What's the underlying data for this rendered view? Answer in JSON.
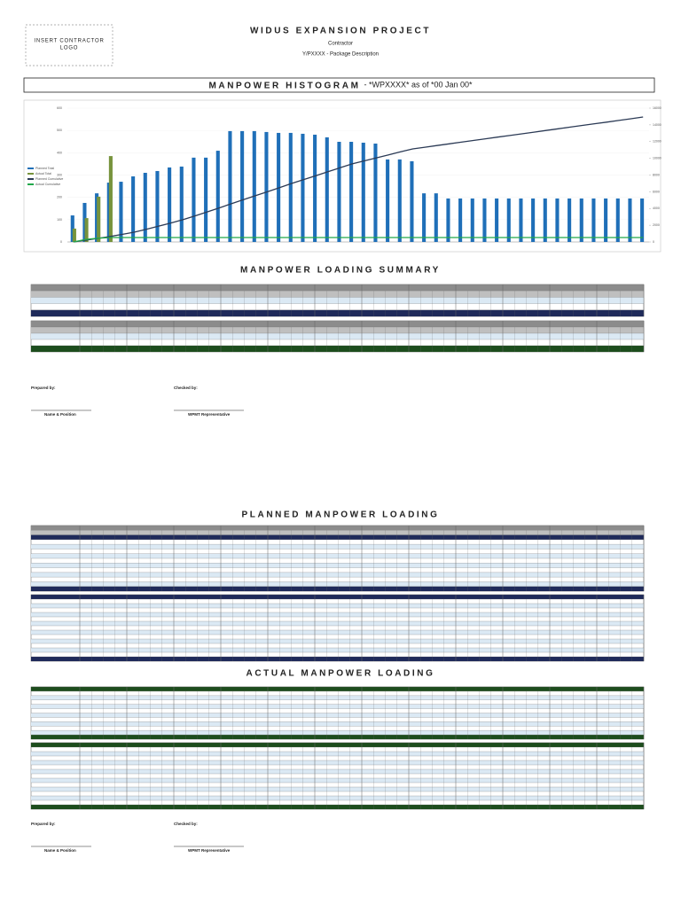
{
  "header": {
    "logo_line1": "INSERT CONTRACTOR",
    "logo_line2": "LOGO",
    "title": "WIDUS EXPANSION PROJECT",
    "contractor": "Contractor",
    "package": "Y/PXXXX - Package Description"
  },
  "sections": {
    "summary": "MANPOWER LOADING SUMMARY",
    "planned": "PLANNED MANPOWER LOADING",
    "actual": "ACTUAL MANPOWER LOADING"
  },
  "signatures": {
    "prepared_by": "Prepared by:",
    "checked_by": "Checked by:",
    "name_position": "Name & Position",
    "wpmt": "WPMT Representative"
  },
  "chart_data": {
    "type": "bar",
    "title": "MANPOWER HISTOGRAM",
    "subtitle": "- *WPXXXX* as of *00 Jan 00*",
    "ylim": [
      0,
      600
    ],
    "yticks": [
      0,
      100,
      200,
      300,
      400,
      500,
      600
    ],
    "y2lim": [
      0,
      16000
    ],
    "y2ticks": [
      0,
      2000,
      4000,
      6000,
      8000,
      10000,
      12000,
      14000,
      16000
    ],
    "series": [
      {
        "name": "Planned Total",
        "color": "#1f6fb8",
        "type": "bar",
        "values": [
          119,
          175,
          218,
          266,
          270,
          294,
          310,
          318,
          334,
          338,
          378,
          378,
          409,
          497,
          497,
          497,
          493,
          489,
          489,
          485,
          481,
          469,
          449,
          449,
          445,
          441,
          370,
          370,
          362,
          218,
          218,
          195,
          195,
          195,
          195,
          195,
          195,
          195,
          195,
          195,
          195,
          195,
          195,
          195,
          195,
          195,
          195,
          195
        ]
      },
      {
        "name": "Actual Total",
        "color": "#77933c",
        "type": "bar",
        "values": [
          60,
          107,
          203,
          385,
          null,
          null,
          null,
          null,
          null,
          null,
          null,
          null,
          null,
          null,
          null,
          null,
          null,
          null,
          null,
          null,
          null,
          null,
          null,
          null,
          null,
          null,
          null,
          null,
          null,
          null,
          null,
          null,
          null,
          null,
          null,
          null,
          null,
          null,
          null,
          null,
          null,
          null,
          null,
          null,
          null,
          null,
          null,
          null
        ]
      },
      {
        "name": "Planned Cumulative",
        "color": "#2b3a55",
        "type": "line",
        "axis": "y2",
        "values": [
          0,
          200,
          420,
          650,
          900,
          1165,
          1520,
          1880,
          2250,
          2650,
          3100,
          3580,
          4060,
          4560,
          5040,
          5520,
          6000,
          6490,
          6990,
          7460,
          7930,
          8400,
          8870,
          9330,
          9700,
          10060,
          10420,
          10780,
          11130,
          11330,
          11530,
          11730,
          11930,
          12130,
          12330,
          12530,
          12730,
          12930,
          13130,
          13330,
          13530,
          13730,
          13930,
          14130,
          14330,
          14530,
          14730,
          14940
        ]
      },
      {
        "name": "Actual Cumulative",
        "color": "#21a84a",
        "type": "line",
        "axis": "y2",
        "values": [
          0,
          300,
          450,
          530,
          530,
          530,
          530,
          530,
          530,
          530,
          530,
          530,
          530,
          530,
          530,
          530,
          530,
          530,
          530,
          530,
          530,
          530,
          530,
          530,
          530,
          530,
          530,
          530,
          530,
          530,
          530,
          530,
          530,
          530,
          530,
          530,
          530,
          530,
          530,
          530,
          530,
          530,
          530,
          530,
          530,
          530,
          530,
          530
        ]
      }
    ]
  }
}
